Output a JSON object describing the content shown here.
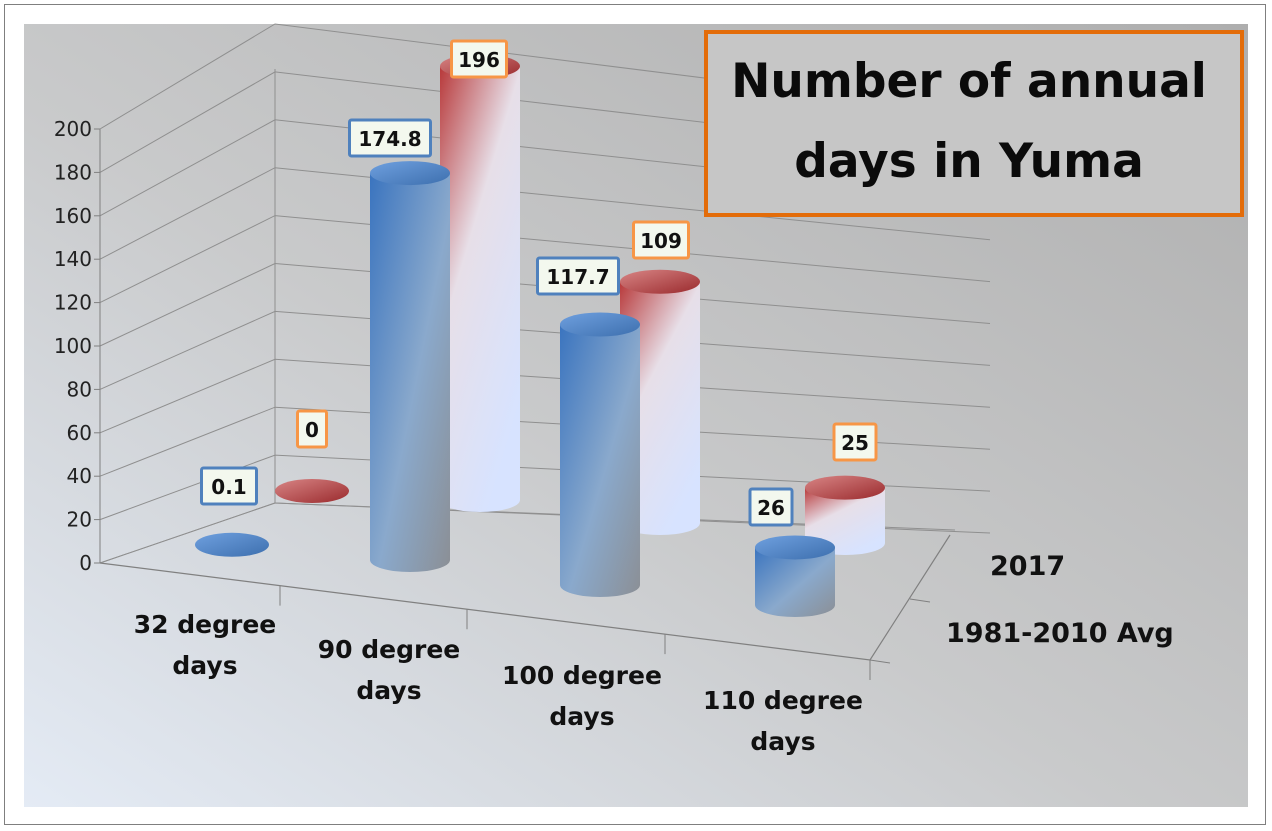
{
  "chart_data": {
    "type": "bar",
    "style": "3d-cylinder",
    "title": "Number of annual days in Yuma",
    "title_lines": [
      "Number of annual",
      "days in Yuma"
    ],
    "categories": [
      "32 degree days",
      "90 degree days",
      "100 degree days",
      "110 degree days"
    ],
    "category_lines": [
      [
        "32 degree",
        "days"
      ],
      [
        "90 degree",
        "days"
      ],
      [
        "100 degree",
        "days"
      ],
      [
        "110 degree",
        "days"
      ]
    ],
    "series": [
      {
        "name": "1981-2010 Avg",
        "values": [
          0.1,
          174.8,
          117.7,
          26
        ],
        "labels": [
          "0.1",
          "174.8",
          "117.7",
          "26"
        ],
        "color": "#4f81bd"
      },
      {
        "name": "2017",
        "values": [
          0,
          196,
          109,
          25
        ],
        "labels": [
          "0",
          "196",
          "109",
          "25"
        ],
        "color": "#c0504d"
      }
    ],
    "y_ticks": [
      "0",
      "20",
      "40",
      "60",
      "80",
      "100",
      "120",
      "140",
      "160",
      "180",
      "200"
    ],
    "ylim": [
      0,
      200
    ],
    "grid": true,
    "colors": {
      "title_border": "#e36c09",
      "avg_label_border": "#4f81bd",
      "y2017_label_border": "#f79646",
      "label_fill": "#f3f8ee"
    }
  }
}
